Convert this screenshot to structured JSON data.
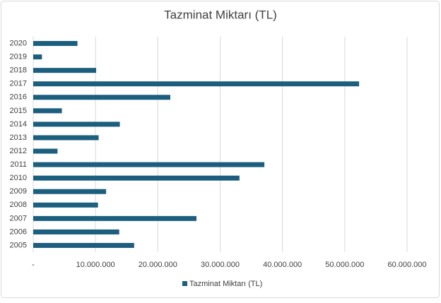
{
  "chart_data": {
    "type": "barh",
    "title": "Tazminat Miktarı (TL)",
    "categories": [
      "2005",
      "2006",
      "2007",
      "2008",
      "2009",
      "2010",
      "2011",
      "2012",
      "2013",
      "2014",
      "2015",
      "2016",
      "2017",
      "2018",
      "2019",
      "2020"
    ],
    "series": [
      {
        "name": "Tazminat Miktarı (TL)",
        "color": "#1b5e7e",
        "values": [
          16200000,
          13800000,
          26200000,
          10400000,
          11700000,
          33100000,
          37100000,
          3900000,
          10500000,
          13900000,
          4600000,
          22000000,
          52300000,
          10100000,
          1400000,
          7100000
        ]
      }
    ],
    "xlim": [
      0,
      60000000
    ],
    "xticks": [
      {
        "value": 0,
        "label": "-"
      },
      {
        "value": 10000000,
        "label": "10.000.000"
      },
      {
        "value": 20000000,
        "label": "20.000.000"
      },
      {
        "value": 30000000,
        "label": "30.000.000"
      },
      {
        "value": 40000000,
        "label": "40.000.000"
      },
      {
        "value": 50000000,
        "label": "50.000.000"
      },
      {
        "value": 60000000,
        "label": "60.000.000"
      }
    ],
    "grid": true,
    "legend": "bottom"
  }
}
